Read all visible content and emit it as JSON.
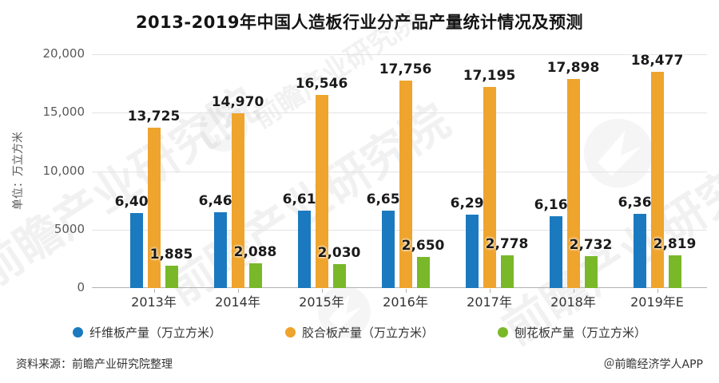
{
  "title": "2013-2019年中国人造板行业分产品产量统计情况及预测",
  "chart_data": {
    "type": "bar",
    "categories": [
      "2013年",
      "2014年",
      "2015年",
      "2016年",
      "2017年",
      "2018年",
      "2019年E"
    ],
    "series": [
      {
        "name": "纤维板产量（万立方米）",
        "color": "#1b7abf",
        "values": [
          6402,
          6463,
          6619,
          6651,
          6297,
          6168,
          6367
        ],
        "labels": [
          "6,402",
          "6,463",
          "6,619",
          "6,651",
          "6,297",
          "6,168",
          "6,367"
        ]
      },
      {
        "name": "胶合板产量（万立方米）",
        "color": "#eea42d",
        "values": [
          13725,
          14970,
          16546,
          17756,
          17195,
          17898,
          18477
        ],
        "labels": [
          "13,725",
          "14,970",
          "16,546",
          "17,756",
          "17,195",
          "17,898",
          "18,477"
        ]
      },
      {
        "name": "刨花板产量（万立方米）",
        "color": "#79b829",
        "values": [
          1885,
          2088,
          2030,
          2650,
          2778,
          2732,
          2819
        ],
        "labels": [
          "1,885",
          "2,088",
          "2,030",
          "2,650",
          "2,778",
          "2,732",
          "2,819"
        ]
      }
    ],
    "title": "2013-2019年中国人造板行业分产品产量统计情况及预测",
    "xlabel": "",
    "ylabel": "单位：万立方米",
    "ylim": [
      0,
      20000
    ],
    "yticks": [
      {
        "value": 0,
        "label": "0"
      },
      {
        "value": 5000,
        "label": "5000"
      },
      {
        "value": 10000,
        "label": "10,000"
      },
      {
        "value": 15000,
        "label": "15,000"
      },
      {
        "value": 20000,
        "label": "20,000"
      }
    ],
    "grid": true,
    "legend_position": "bottom"
  },
  "footer": {
    "source": "资料来源：前瞻产业研究院整理",
    "credit": "＠前瞻经济学人APP"
  },
  "watermark": {
    "text": "前瞻产业研究院"
  }
}
